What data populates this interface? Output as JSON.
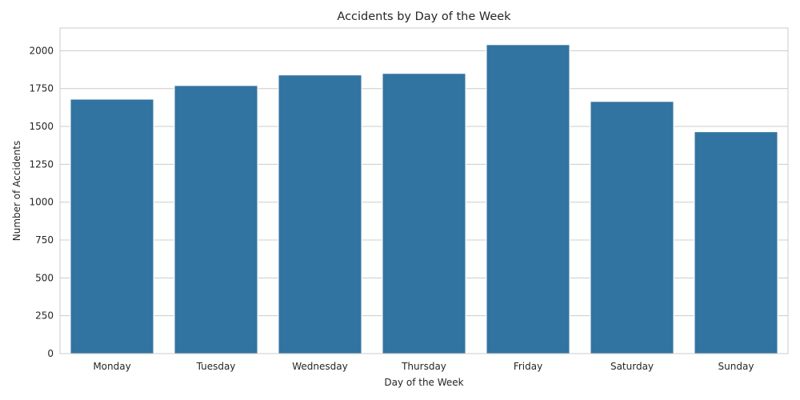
{
  "chart_data": {
    "type": "bar",
    "title": "Accidents by Day of the Week",
    "xlabel": "Day of the Week",
    "ylabel": "Number of Accidents",
    "categories": [
      "Monday",
      "Tuesday",
      "Wednesday",
      "Thursday",
      "Friday",
      "Saturday",
      "Sunday"
    ],
    "values": [
      1680,
      1770,
      1840,
      1850,
      2040,
      1665,
      1465
    ],
    "ylim": [
      0,
      2150
    ],
    "yticks": [
      0,
      250,
      500,
      750,
      1000,
      1250,
      1500,
      1750,
      2000
    ],
    "grid": "horizontal",
    "bar_color": "#3274a1",
    "legend": "none"
  }
}
